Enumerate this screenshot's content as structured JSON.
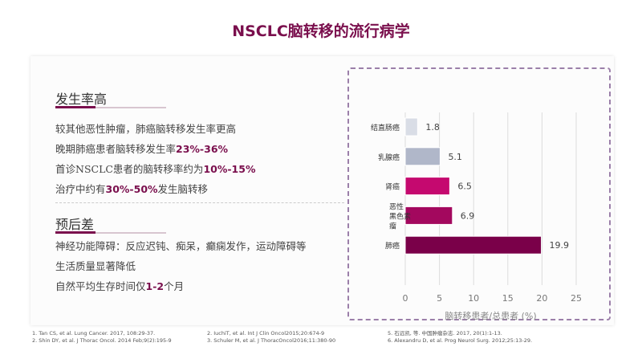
{
  "title": "NSCLC脑转移的流行病学",
  "section1": {
    "heading": "发生率高",
    "lines": [
      {
        "pre": "较其他恶性肿瘤，肺癌脑转移发生率更高",
        "hl": "",
        "post": ""
      },
      {
        "pre": "晚期肺癌患者脑转移发生率",
        "hl": "23%-36%",
        "post": ""
      },
      {
        "pre": "首诊NSCLC患者的脑转移率约为",
        "hl": "10%-15%",
        "post": ""
      },
      {
        "pre": "治疗中约有",
        "hl": "30%-50%",
        "post": "发生脑转移"
      }
    ]
  },
  "section2": {
    "heading": "预后差",
    "lines": [
      {
        "pre": "神经功能障碍：反应迟钝、痴呆，癫痫发作，运动障碍等",
        "hl": "",
        "post": ""
      },
      {
        "pre": "生活质量显著降低",
        "hl": "",
        "post": ""
      },
      {
        "pre": "自然平均生存时间仅",
        "hl": "1-2",
        "post": "个月"
      }
    ]
  },
  "chart_data": {
    "type": "bar",
    "orientation": "horizontal",
    "categories": [
      "结直肠癌",
      "乳腺癌",
      "肾癌",
      "恶性黑色素瘤",
      "肺癌"
    ],
    "category_lines": [
      [
        "结直肠癌"
      ],
      [
        "乳腺癌"
      ],
      [
        "肾癌"
      ],
      [
        "恶性",
        "黑色素",
        "瘤"
      ],
      [
        "肺癌"
      ]
    ],
    "values": [
      1.8,
      5.1,
      6.5,
      6.9,
      19.9
    ],
    "value_labels": [
      "1.8",
      "5.1",
      "6.5",
      "6.9",
      "19.9"
    ],
    "colors": [
      "#d9dde6",
      "#b0b7c9",
      "#c5096f",
      "#a3085e",
      "#7a0049"
    ],
    "xlabel": "脑转移患者/总患者 (%)",
    "xlim": [
      0,
      25
    ],
    "xticks": [
      "0",
      "5",
      "10",
      "15",
      "20",
      "25"
    ],
    "grid": true
  },
  "references": {
    "col1": [
      "1.    Tan CS, et al. Lung Cancer. 2017, 108:29-37.",
      "2.    Shin DY, et al. J Thorac Oncol. 2014 Feb;9(2):195-9"
    ],
    "col2": [
      "2. IuchiT, et al. Int J Clin Oncol2015;20:674-9",
      "3. Schuler M, et al. J ThoracOncol2016;11:380-90"
    ],
    "col3": [
      "5. 石远凯, 等. 中国肿瘤杂志. 2017, 20(1):1-13.",
      "6. Alexandru D, et al. Prog Neurol Surg. 2012;25:13-29."
    ]
  }
}
